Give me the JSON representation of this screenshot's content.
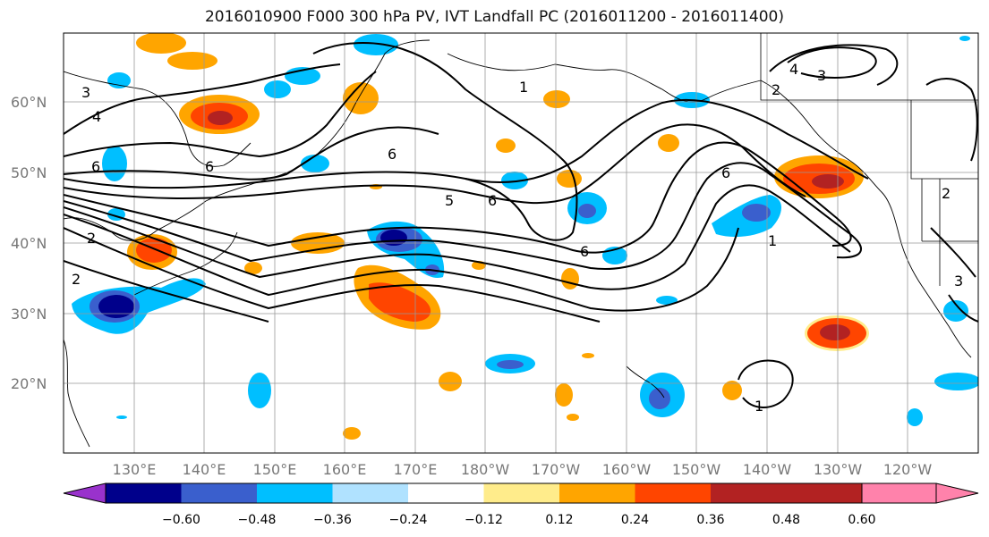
{
  "map": {
    "title": "2016010900 F000 300 hPa PV, IVT Landfall PC (2016011200 - 2016011400)",
    "latitude_labels": [
      "60°N",
      "50°N",
      "40°N",
      "30°N",
      "20°N"
    ],
    "longitude_labels": [
      "130°E",
      "140°E",
      "150°E",
      "160°E",
      "170°E",
      "180°W",
      "170°W",
      "160°W",
      "150°W",
      "140°W",
      "130°W",
      "120°W"
    ],
    "contour_labels": [
      "3",
      "4",
      "6",
      "6",
      "2",
      "2",
      "1",
      "6",
      "6",
      "5",
      "6",
      "6",
      "4",
      "2",
      "3",
      "1",
      "2",
      "3",
      "1"
    ]
  },
  "colorbar": {
    "colors": [
      "#9932CC",
      "#00008B",
      "#3A5FCD",
      "#00BFFF",
      "#B0E2FF",
      "#FFFFFF",
      "#FFEC8B",
      "#FFA500",
      "#FF4500",
      "#B22222",
      "#FF82AB"
    ],
    "tick_labels": [
      "−0.60",
      "−0.48",
      "−0.36",
      "−0.24",
      "−0.12",
      "0.12",
      "0.24",
      "0.36",
      "0.48",
      "0.60"
    ]
  }
}
